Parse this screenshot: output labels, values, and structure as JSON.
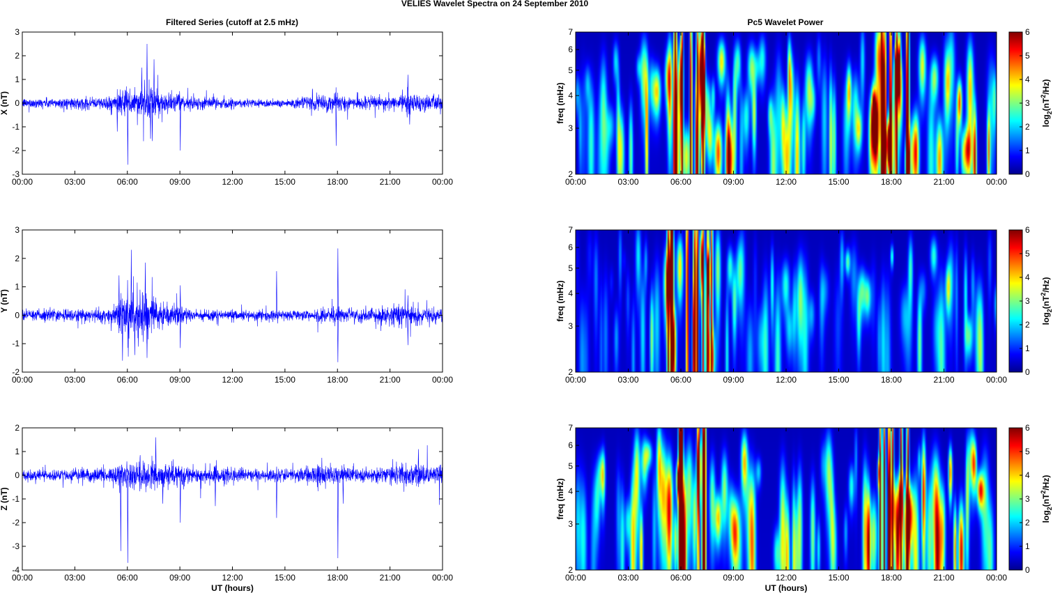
{
  "figure_title": "VELIES Wavelet Spectra on 24 September 2010",
  "left_title": "Filtered Series (cutoff at 2.5 mHz)",
  "right_title": "Pc5 Wavelet Power",
  "colors": {
    "trace": "#0000ff",
    "jet": [
      "#00008f",
      "#0000ff",
      "#00ffff",
      "#ffff00",
      "#ff0000",
      "#800000"
    ]
  },
  "chart_data": [
    {
      "type": "line",
      "panel": "X",
      "ylabel": "X (nT)",
      "xlabel": "",
      "xticks": [
        "00:00",
        "03:00",
        "06:00",
        "09:00",
        "12:00",
        "15:00",
        "18:00",
        "21:00",
        "00:00"
      ],
      "xlim_hours": [
        0,
        24
      ],
      "yticks": [
        -3,
        -2,
        -1,
        0,
        1,
        2,
        3
      ],
      "ylim": [
        -3,
        3
      ],
      "noise_sigma": [
        [
          0,
          0.12
        ],
        [
          4.5,
          0.15
        ],
        [
          5.5,
          0.25
        ],
        [
          6,
          0.35
        ],
        [
          7,
          0.45
        ],
        [
          8,
          0.3
        ],
        [
          9,
          0.18
        ],
        [
          12,
          0.12
        ],
        [
          15,
          0.1
        ],
        [
          17.5,
          0.22
        ],
        [
          18.5,
          0.2
        ],
        [
          19,
          0.15
        ],
        [
          21.5,
          0.18
        ],
        [
          22,
          0.35
        ],
        [
          22.5,
          0.2
        ],
        [
          24,
          0.2
        ]
      ],
      "spikes": [
        [
          5.4,
          -1.2
        ],
        [
          6.0,
          -2.6
        ],
        [
          6.8,
          1.5
        ],
        [
          7.1,
          2.5
        ],
        [
          7.3,
          -1.5
        ],
        [
          7.4,
          -1.6
        ],
        [
          7.5,
          1.85
        ],
        [
          9.0,
          -2.0
        ],
        [
          17.9,
          -1.8
        ],
        [
          22.0,
          1.2
        ],
        [
          22.1,
          -0.9
        ]
      ]
    },
    {
      "type": "line",
      "panel": "Y",
      "ylabel": "Y (nT)",
      "xlabel": "",
      "xticks": [
        "00:00",
        "03:00",
        "06:00",
        "09:00",
        "12:00",
        "15:00",
        "18:00",
        "21:00",
        "00:00"
      ],
      "xlim_hours": [
        0,
        24
      ],
      "yticks": [
        -2,
        -1,
        0,
        1,
        2,
        3
      ],
      "ylim": [
        -2,
        3
      ],
      "noise_sigma": [
        [
          0,
          0.12
        ],
        [
          5,
          0.15
        ],
        [
          5.5,
          0.45
        ],
        [
          6.5,
          0.5
        ],
        [
          7.5,
          0.4
        ],
        [
          8.5,
          0.2
        ],
        [
          10,
          0.12
        ],
        [
          16,
          0.1
        ],
        [
          18,
          0.2
        ],
        [
          19,
          0.12
        ],
        [
          22,
          0.25
        ],
        [
          24,
          0.15
        ]
      ],
      "spikes": [
        [
          5.5,
          1.4
        ],
        [
          5.7,
          -1.6
        ],
        [
          6.2,
          2.3
        ],
        [
          6.4,
          -1.4
        ],
        [
          7.0,
          1.85
        ],
        [
          7.1,
          -1.5
        ],
        [
          9.0,
          1.05
        ],
        [
          9.0,
          -1.15
        ],
        [
          14.5,
          1.55
        ],
        [
          18.0,
          2.35
        ],
        [
          18.0,
          -1.65
        ],
        [
          22.0,
          0.7
        ],
        [
          22.0,
          -1.05
        ]
      ]
    },
    {
      "type": "line",
      "panel": "Z",
      "ylabel": "Z (nT)",
      "xlabel": "UT (hours)",
      "xticks": [
        "00:00",
        "03:00",
        "06:00",
        "09:00",
        "12:00",
        "15:00",
        "18:00",
        "21:00",
        "00:00"
      ],
      "xlim_hours": [
        0,
        24
      ],
      "yticks": [
        -4,
        -3,
        -2,
        -1,
        0,
        1,
        2
      ],
      "ylim": [
        -4,
        2
      ],
      "noise_sigma": [
        [
          0,
          0.12
        ],
        [
          5,
          0.18
        ],
        [
          5.5,
          0.3
        ],
        [
          7,
          0.4
        ],
        [
          8.5,
          0.28
        ],
        [
          10,
          0.2
        ],
        [
          15,
          0.15
        ],
        [
          17.5,
          0.3
        ],
        [
          18.5,
          0.25
        ],
        [
          20,
          0.15
        ],
        [
          22,
          0.3
        ],
        [
          24,
          0.25
        ]
      ],
      "spikes": [
        [
          5.6,
          -3.2
        ],
        [
          6.0,
          -3.7
        ],
        [
          7.6,
          1.6
        ],
        [
          8.0,
          -1.2
        ],
        [
          9.0,
          -2.0
        ],
        [
          11.0,
          -1.3
        ],
        [
          14.5,
          -1.8
        ],
        [
          18.0,
          -3.5
        ],
        [
          18.3,
          -1.2
        ],
        [
          22.6,
          1.1
        ]
      ]
    },
    {
      "type": "heatmap",
      "panel": "X",
      "ylabel": "freq (mHz)",
      "xlabel": "",
      "colorbar_label": "log2(nT^2/Hz)",
      "colorbar_ticks": [
        0,
        1,
        2,
        3,
        4,
        5,
        6
      ],
      "clim": [
        0,
        6
      ],
      "xticks": [
        "00:00",
        "03:00",
        "06:00",
        "09:00",
        "12:00",
        "15:00",
        "18:00",
        "21:00",
        "00:00"
      ],
      "yticks": [
        2,
        3,
        4,
        5,
        6,
        7
      ],
      "ylim_mHz": [
        2,
        7
      ],
      "yscale": "log",
      "activity": [
        [
          0,
          1.5
        ],
        [
          3,
          2.5
        ],
        [
          5,
          3.5
        ],
        [
          6,
          4.8
        ],
        [
          7,
          5.0
        ],
        [
          8,
          3.5
        ],
        [
          9,
          3.0
        ],
        [
          12,
          2.8
        ],
        [
          15,
          2.8
        ],
        [
          16.5,
          3.5
        ],
        [
          17.5,
          5.5
        ],
        [
          18.5,
          5.3
        ],
        [
          19.5,
          4.0
        ],
        [
          21,
          3.0
        ],
        [
          22.5,
          4.0
        ],
        [
          24,
          3.0
        ]
      ]
    },
    {
      "type": "heatmap",
      "panel": "Y",
      "ylabel": "freq (mHz)",
      "xlabel": "",
      "colorbar_label": "log2(nT^2/Hz)",
      "colorbar_ticks": [
        0,
        1,
        2,
        3,
        4,
        5,
        6
      ],
      "clim": [
        0,
        6
      ],
      "xticks": [
        "00:00",
        "03:00",
        "06:00",
        "09:00",
        "12:00",
        "15:00",
        "18:00",
        "21:00",
        "00:00"
      ],
      "yticks": [
        2,
        3,
        4,
        5,
        6,
        7
      ],
      "ylim_mHz": [
        2,
        7
      ],
      "yscale": "log",
      "activity": [
        [
          0,
          0.8
        ],
        [
          3,
          1.2
        ],
        [
          5,
          2.5
        ],
        [
          5.6,
          5.0
        ],
        [
          6.5,
          5.6
        ],
        [
          7.5,
          4.5
        ],
        [
          8.7,
          4.2
        ],
        [
          10,
          1.2
        ],
        [
          12,
          2.0
        ],
        [
          13,
          2.5
        ],
        [
          15,
          1.5
        ],
        [
          16,
          2.8
        ],
        [
          17,
          1.5
        ],
        [
          19,
          2.5
        ],
        [
          21,
          2.0
        ],
        [
          22,
          2.6
        ],
        [
          24,
          1.5
        ]
      ]
    },
    {
      "type": "heatmap",
      "panel": "Z",
      "ylabel": "freq (mHz)",
      "xlabel": "UT (hours)",
      "colorbar_label": "log2(nT^2/Hz)",
      "colorbar_ticks": [
        0,
        1,
        2,
        3,
        4,
        5,
        6
      ],
      "clim": [
        0,
        6
      ],
      "xticks": [
        "00:00",
        "03:00",
        "06:00",
        "09:00",
        "12:00",
        "15:00",
        "18:00",
        "21:00",
        "00:00"
      ],
      "yticks": [
        2,
        3,
        4,
        5,
        6,
        7
      ],
      "ylim_mHz": [
        2,
        7
      ],
      "yscale": "log",
      "activity": [
        [
          0,
          1.5
        ],
        [
          3,
          2.5
        ],
        [
          5,
          3.5
        ],
        [
          6,
          5.2
        ],
        [
          7,
          5.0
        ],
        [
          8,
          3.8
        ],
        [
          9,
          3.8
        ],
        [
          12,
          3.0
        ],
        [
          15,
          2.8
        ],
        [
          16.5,
          3.6
        ],
        [
          17.5,
          5.5
        ],
        [
          18.5,
          5.2
        ],
        [
          19.5,
          4.0
        ],
        [
          21,
          3.5
        ],
        [
          22.5,
          4.2
        ],
        [
          24,
          3.0
        ]
      ]
    }
  ]
}
